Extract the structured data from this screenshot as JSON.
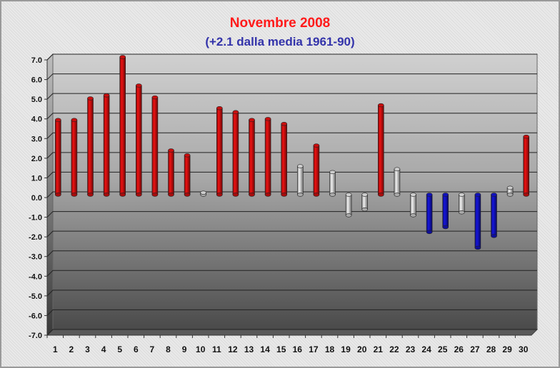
{
  "chart_data": {
    "type": "bar",
    "title": "Novembre 2008",
    "subtitle": "(+2.1 dalla media 1961-90)",
    "categories": [
      "1",
      "2",
      "3",
      "4",
      "5",
      "6",
      "7",
      "8",
      "9",
      "10",
      "11",
      "12",
      "13",
      "14",
      "15",
      "16",
      "17",
      "18",
      "19",
      "20",
      "21",
      "22",
      "23",
      "24",
      "25",
      "26",
      "27",
      "28",
      "29",
      "30"
    ],
    "values": [
      3.8,
      3.8,
      4.9,
      5.05,
      7.0,
      5.55,
      4.95,
      2.25,
      2.0,
      0.1,
      4.4,
      4.2,
      3.8,
      3.85,
      3.6,
      1.45,
      2.5,
      1.15,
      -1.05,
      -0.75,
      4.55,
      1.3,
      -1.05,
      -1.9,
      -1.65,
      -0.9,
      -2.7,
      -2.1,
      0.35,
      2.95
    ],
    "bar_colors": [
      "#ee1111",
      "#ee1111",
      "#ee1111",
      "#ee1111",
      "#ee1111",
      "#ee1111",
      "#ee1111",
      "#ee1111",
      "#ee1111",
      "#f2f2f2",
      "#ee1111",
      "#ee1111",
      "#ee1111",
      "#ee1111",
      "#ee1111",
      "#f2f2f2",
      "#ee1111",
      "#f2f2f2",
      "#f2f2f2",
      "#f2f2f2",
      "#ee1111",
      "#f2f2f2",
      "#f2f2f2",
      "#1515dd",
      "#1515dd",
      "#f2f2f2",
      "#1515dd",
      "#1515dd",
      "#f2f2f2",
      "#ee1111"
    ],
    "ylim": [
      -7.0,
      7.0
    ],
    "yticks": [
      "7.0",
      "6.0",
      "5.0",
      "4.0",
      "3.0",
      "2.0",
      "1.0",
      "0.0",
      "-1.0",
      "-2.0",
      "-3.0",
      "-4.0",
      "-5.0",
      "-6.0",
      "-7.0"
    ],
    "xlabel": "",
    "ylabel": "",
    "grid": true,
    "colors": {
      "warm": "#ee1111",
      "normal": "#f2f2f2",
      "cold": "#1515dd",
      "title": "#ff1a1a",
      "subtitle": "#3333aa"
    }
  }
}
